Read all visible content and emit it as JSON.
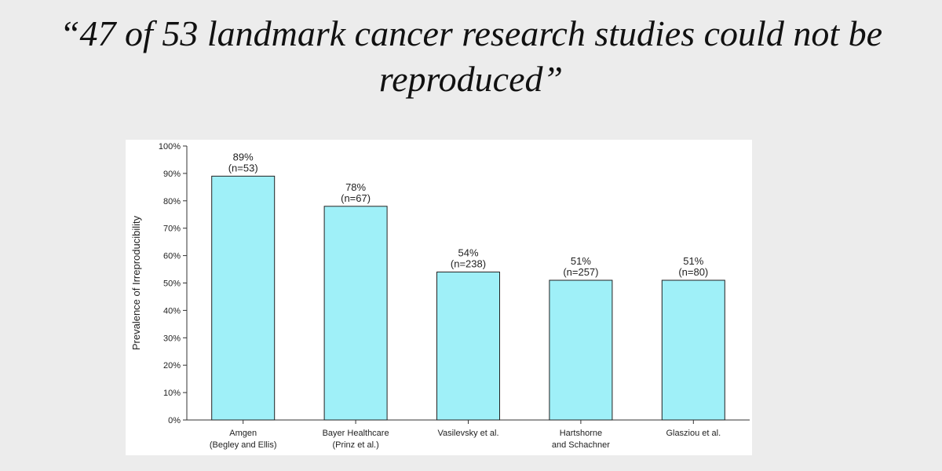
{
  "slide": {
    "title_line1": "“47 of 53 landmark cancer research studies could not be",
    "title_line2": "reproduced”"
  },
  "chart_data": {
    "type": "bar",
    "title": "“47 of 53 landmark cancer research studies could not be reproduced”",
    "ylabel": "Prevalence of Irreproducibility",
    "xlabel": "",
    "ylim": [
      0,
      100
    ],
    "yticks": [
      "0%",
      "10%",
      "20%",
      "30%",
      "40%",
      "50%",
      "60%",
      "70%",
      "80%",
      "90%",
      "100%"
    ],
    "grid": false,
    "legend": "none",
    "bar_color": "#9ff0f8",
    "bar_edge": "#222222",
    "categories": [
      [
        "Amgen",
        "(Begley and Ellis)"
      ],
      [
        "Bayer Healthcare",
        "(Prinz et al.)"
      ],
      [
        "Vasilevsky et al."
      ],
      [
        "Hartshorne",
        "and Schachner"
      ],
      [
        "Glasziou et al."
      ]
    ],
    "values": [
      89,
      78,
      54,
      51,
      51
    ],
    "value_labels": [
      "89%",
      "78%",
      "54%",
      "51%",
      "51%"
    ],
    "n_labels": [
      "(n=53)",
      "(n=67)",
      "(n=238)",
      "(n=257)",
      "(n=80)"
    ]
  }
}
